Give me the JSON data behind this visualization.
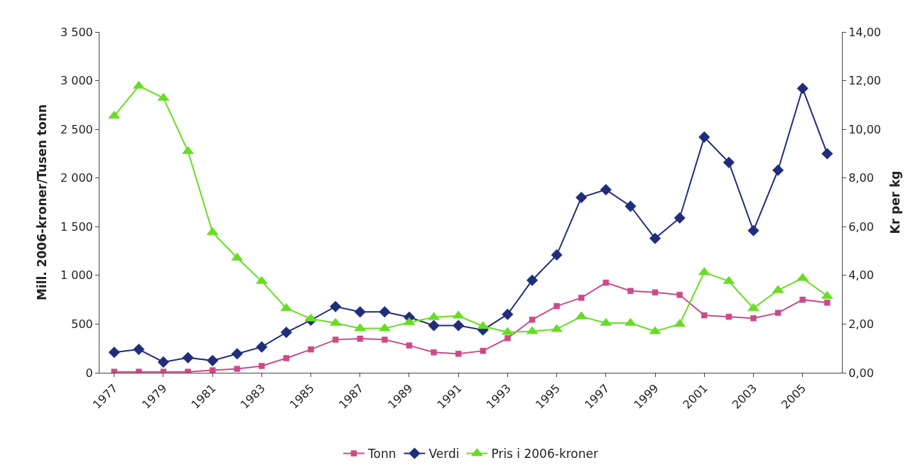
{
  "chart_data": {
    "type": "line",
    "categories": [
      "1977",
      null,
      "1979",
      null,
      "1981",
      null,
      "1983",
      null,
      "1985",
      null,
      "1987",
      null,
      "1989",
      null,
      "1991",
      null,
      "1993",
      null,
      "1995",
      null,
      "1997",
      null,
      "1999",
      null,
      "2001",
      null,
      "2003",
      null,
      "2005",
      null
    ],
    "ylabel": "Mill. 2006-kroner/Tusen tonn",
    "y2label": "Kr per kg",
    "ylim": [
      0,
      3500
    ],
    "yticks": [
      0,
      500,
      {
        "value": 1000,
        "label": "1 000"
      },
      {
        "value": 1500,
        "label": "1 500"
      },
      {
        "value": 2000,
        "label": "2 000"
      },
      {
        "value": 2500,
        "label": "2 500"
      },
      {
        "value": 3000,
        "label": "3 000"
      },
      {
        "value": 3500,
        "label": "3 500"
      }
    ],
    "y2lim": [
      0,
      14
    ],
    "y2ticks": [
      {
        "value": 0,
        "label": "0,00"
      },
      {
        "value": 2,
        "label": "2,00"
      },
      {
        "value": 4,
        "label": "4,00"
      },
      {
        "value": 6,
        "label": "6,00"
      },
      {
        "value": 8,
        "label": "8,00"
      },
      {
        "value": 10,
        "label": "10,00"
      },
      {
        "value": 12,
        "label": "12,00"
      },
      {
        "value": 14,
        "label": "14,00"
      }
    ],
    "legend": "bottom",
    "series": [
      {
        "name": "Tonn",
        "color": "#cc4a8a",
        "marker": "square",
        "values": [
          10,
          10,
          10,
          10,
          25,
          40,
          70,
          150,
          240,
          340,
          350,
          340,
          280,
          210,
          195,
          225,
          355,
          545,
          685,
          770,
          925,
          840,
          825,
          800,
          590,
          575,
          560,
          615,
          750,
          720
        ]
      },
      {
        "name": "Verdi",
        "color": "#1f2d7a",
        "marker": "diamond",
        "values": [
          210,
          240,
          110,
          155,
          125,
          195,
          265,
          415,
          540,
          680,
          625,
          625,
          570,
          485,
          485,
          440,
          600,
          950,
          1210,
          1800,
          1880,
          1710,
          1380,
          1590,
          2420,
          2160,
          1460,
          2080,
          2920,
          2250
        ]
      },
      {
        "name": "Pris i 2006-kroner",
        "color": "#66dd22",
        "marker": "triangle",
        "axis": "y2",
        "values": [
          10.55,
          11.78,
          11.29,
          9.1,
          5.77,
          4.72,
          3.76,
          2.65,
          2.22,
          2.04,
          1.82,
          1.82,
          2.07,
          2.28,
          2.34,
          1.91,
          1.67,
          1.7,
          1.79,
          2.31,
          2.04,
          2.04,
          1.7,
          2.0,
          4.13,
          3.76,
          2.65,
          3.39,
          3.89,
          3.15
        ]
      }
    ]
  }
}
